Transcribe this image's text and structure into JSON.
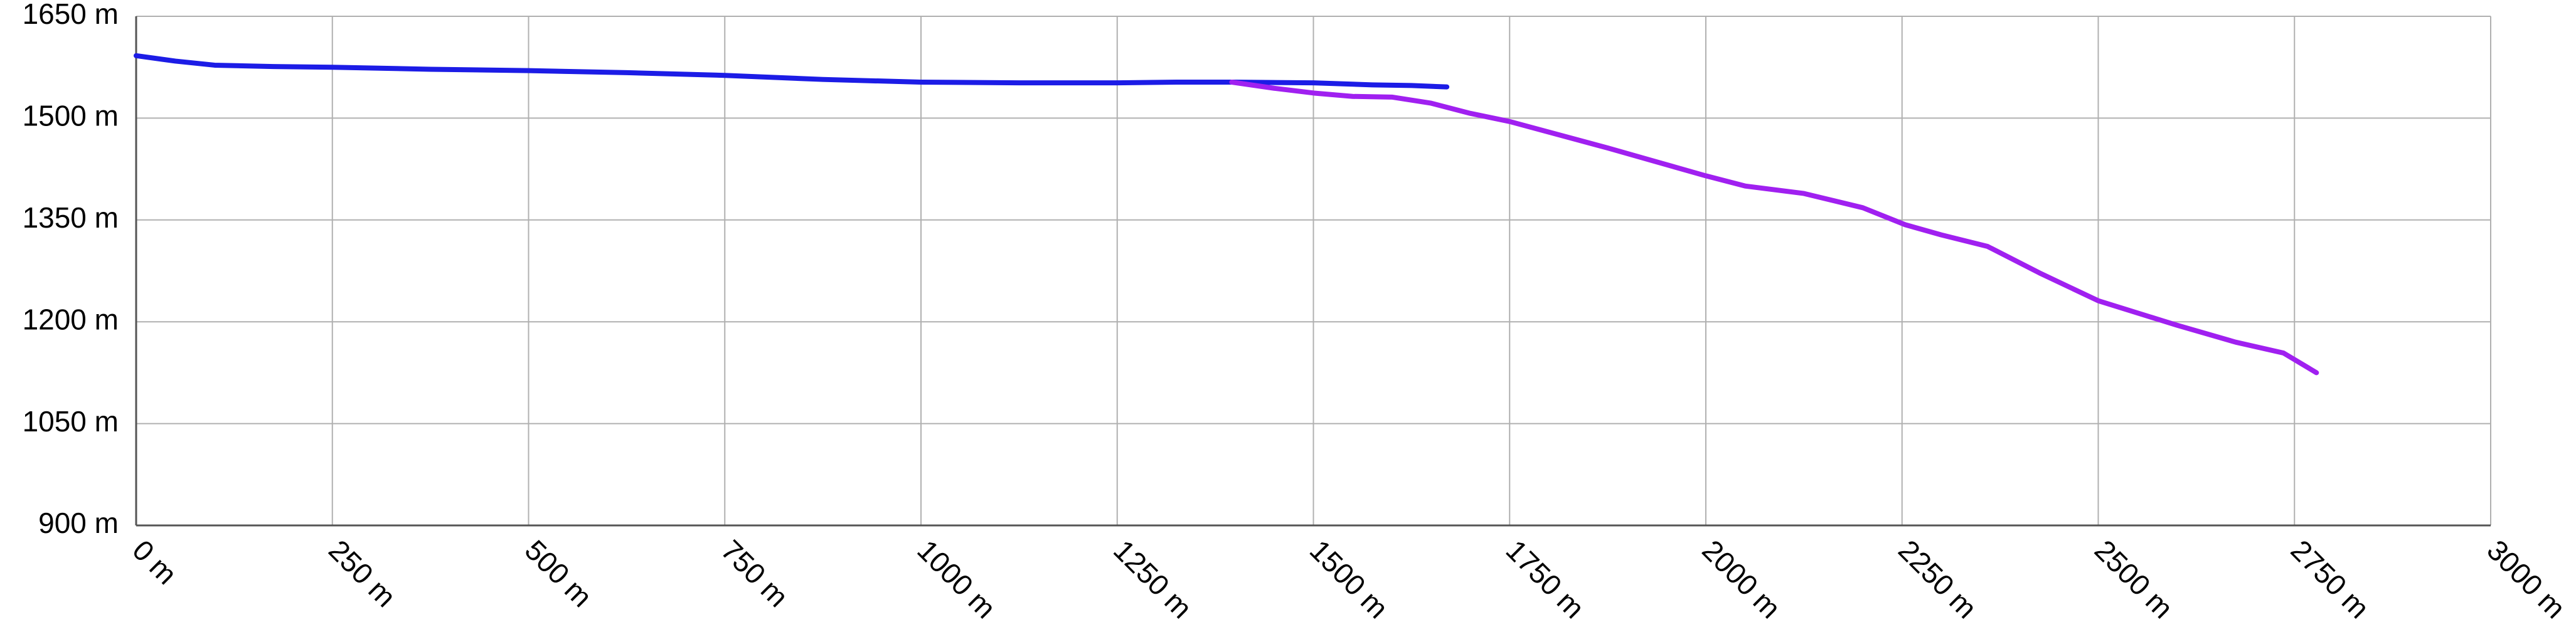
{
  "chart_data": {
    "type": "line",
    "series": [
      {
        "color": "#1c1ce6",
        "x": [
          0,
          50,
          100,
          175,
          250,
          375,
          500,
          625,
          750,
          875,
          1000,
          1125,
          1250,
          1325,
          1400,
          1500,
          1575,
          1625,
          1670
        ],
        "values": [
          1592,
          1584,
          1578,
          1576,
          1575,
          1572,
          1570,
          1567,
          1563,
          1557,
          1553,
          1552,
          1552,
          1553,
          1553,
          1552,
          1549,
          1548,
          1546
        ]
      },
      {
        "color": "#a020f0",
        "x": [
          1396,
          1450,
          1500,
          1550,
          1600,
          1650,
          1700,
          1750,
          1875,
          2000,
          2050,
          2125,
          2200,
          2254,
          2300,
          2359,
          2425,
          2500,
          2600,
          2675,
          2736,
          2778
        ],
        "values": [
          1553,
          1544,
          1537,
          1532,
          1531,
          1522,
          1507,
          1495,
          1456,
          1415,
          1400,
          1389,
          1368,
          1343,
          1328,
          1311,
          1272,
          1231,
          1195,
          1170,
          1154,
          1125
        ]
      }
    ],
    "xlim": [
      0,
      3000
    ],
    "xticks": [
      {
        "value": 0,
        "label": "0 m"
      },
      {
        "value": 250,
        "label": "250 m"
      },
      {
        "value": 500,
        "label": "500 m"
      },
      {
        "value": 750,
        "label": "750 m"
      },
      {
        "value": 1000,
        "label": "1000 m"
      },
      {
        "value": 1250,
        "label": "1250 m"
      },
      {
        "value": 1500,
        "label": "1500 m"
      },
      {
        "value": 1750,
        "label": "1750 m"
      },
      {
        "value": 2000,
        "label": "2000 m"
      },
      {
        "value": 2250,
        "label": "2250 m"
      },
      {
        "value": 2500,
        "label": "2500 m"
      },
      {
        "value": 2750,
        "label": "2750 m"
      },
      {
        "value": 3000,
        "label": "3000 m"
      }
    ],
    "ylim": [
      900,
      1650
    ],
    "yticks": [
      {
        "value": 900,
        "label": "900 m"
      },
      {
        "value": 1050,
        "label": "1050 m"
      },
      {
        "value": 1200,
        "label": "1200 m"
      },
      {
        "value": 1350,
        "label": "1350 m"
      },
      {
        "value": 1500,
        "label": "1500 m"
      },
      {
        "value": 1650,
        "label": "1650 m"
      }
    ],
    "grid": true
  }
}
